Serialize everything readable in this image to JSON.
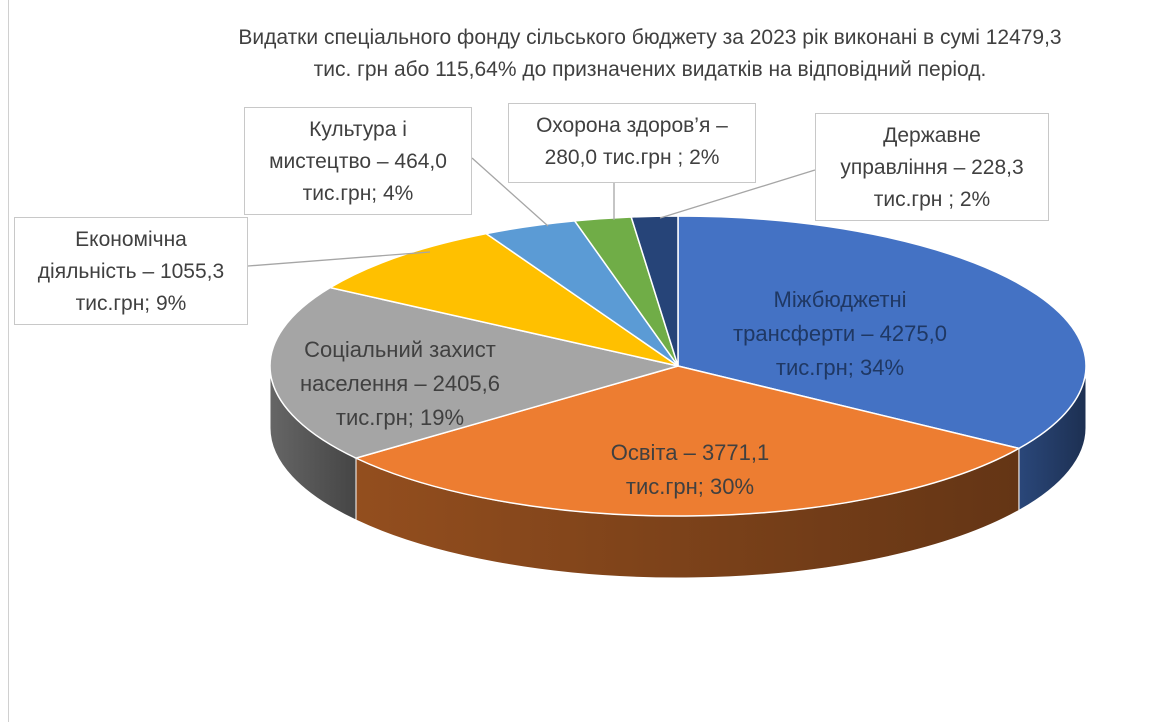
{
  "title": {
    "line1": "Видатки спеціального фонду сільського бюджету за 2023 рік виконані в сумі 12479,3",
    "line2": "тис. грн  або 115,64% до призначених видатків на відповідний період."
  },
  "chart_data": {
    "type": "pie",
    "style": "3d",
    "unit": "тис.грн",
    "slices": [
      {
        "name": "Міжбюджетні трансферти",
        "value": 4275.0,
        "percent": 34,
        "color": "#4472C4",
        "label_lines": [
          "Міжбюджетні",
          "трансферти – 4275,0",
          "тис.грн; 34%"
        ]
      },
      {
        "name": "Освіта",
        "value": 3771.1,
        "percent": 30,
        "color": "#ED7D31",
        "label_lines": [
          "Освіта – 3771,1",
          "тис.грн; 30%"
        ]
      },
      {
        "name": "Соціальний захист населення",
        "value": 2405.6,
        "percent": 19,
        "color": "#A5A5A5",
        "label_lines": [
          "Соціальний захист",
          "населення – 2405,6",
          "тис.грн; 19%"
        ]
      },
      {
        "name": "Економічна діяльність",
        "value": 1055.3,
        "percent": 9,
        "color": "#FFC000",
        "label_lines": [
          "Економічна",
          "діяльність – 1055,3",
          "тис.грн; 9%"
        ]
      },
      {
        "name": "Культура і мистецтво",
        "value": 464.0,
        "percent": 4,
        "color": "#5B9BD5",
        "label_lines": [
          "Культура і",
          "мистецтво – 464,0",
          "тис.грн; 4%"
        ]
      },
      {
        "name": "Охорона здоров’я",
        "value": 280.0,
        "percent": 2,
        "color": "#70AD47",
        "label_lines": [
          "Охорона здоров’я –",
          "280,0 тис.грн ; 2%"
        ]
      },
      {
        "name": "Державне управління",
        "value": 228.3,
        "percent": 2,
        "color": "#264478",
        "label_lines": [
          "Державне",
          "управління – 228,3",
          "тис.грн ; 2%"
        ]
      }
    ]
  }
}
